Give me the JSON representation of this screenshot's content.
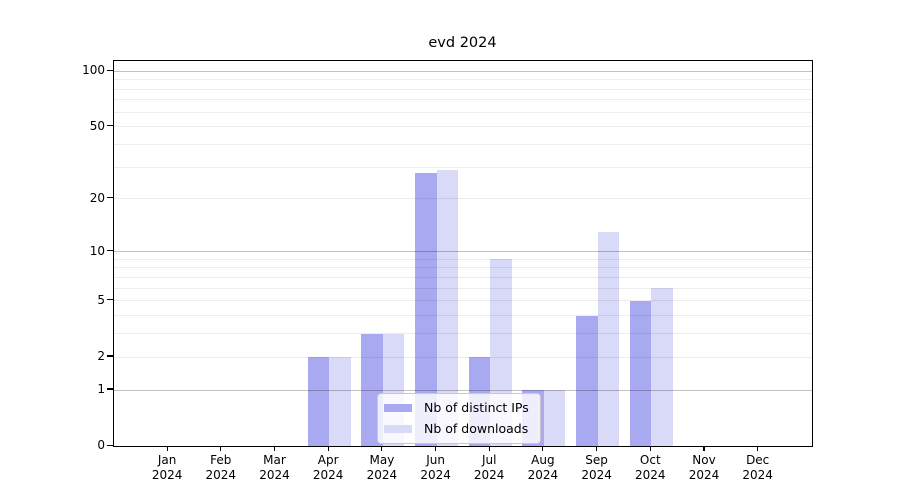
{
  "title": "evd 2024",
  "chart_data": {
    "type": "bar",
    "title": "evd 2024",
    "categories": [
      "Jan",
      "Feb",
      "Mar",
      "Apr",
      "May",
      "Jun",
      "Jul",
      "Aug",
      "Sep",
      "Oct",
      "Nov",
      "Dec"
    ],
    "year_label": "2024",
    "series": [
      {
        "name": "Nb of distinct IPs",
        "color": "#a9a9f1",
        "values": [
          0,
          0,
          0,
          2,
          3,
          28,
          2,
          1,
          4,
          5,
          0,
          0
        ]
      },
      {
        "name": "Nb of downloads",
        "color": "#d9d9f8",
        "values": [
          0,
          0,
          0,
          2,
          3,
          29,
          9,
          1,
          13,
          6,
          0,
          0
        ]
      }
    ],
    "y_scale": "log10(1+value)",
    "y_ticks": [
      0,
      1,
      2,
      5,
      10,
      20,
      50,
      100
    ],
    "y_major_gridlines": [
      1,
      10,
      100
    ],
    "y_minor_gridlines": [
      2,
      3,
      4,
      5,
      6,
      7,
      8,
      9,
      20,
      30,
      40,
      50,
      60,
      70,
      80,
      90
    ],
    "ylim": [
      0,
      114
    ],
    "xlabel": "",
    "ylabel": "",
    "grid": true,
    "legend_position": "lower center"
  }
}
